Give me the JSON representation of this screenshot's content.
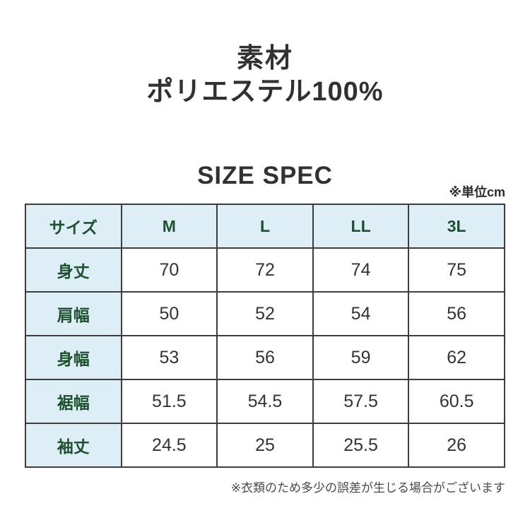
{
  "colors": {
    "background": "#ffffff",
    "header_cell_bg": "#ddeef6",
    "header_cell_text": "#1e5130",
    "table_border": "#3d3d3d",
    "title_text": "#313131",
    "cell_text": "#333333",
    "footnote_text": "#4a4a4a"
  },
  "material": {
    "title": "素材",
    "value": "ポリエステル100%"
  },
  "size_spec": {
    "heading": "SIZE SPEC",
    "unit_note": "※単位cm",
    "table": {
      "columns": [
        "サイズ",
        "M",
        "L",
        "LL",
        "3L"
      ],
      "rows": [
        {
          "label": "身丈",
          "values": [
            "70",
            "72",
            "74",
            "75"
          ]
        },
        {
          "label": "肩幅",
          "values": [
            "50",
            "52",
            "54",
            "56"
          ]
        },
        {
          "label": "身幅",
          "values": [
            "53",
            "56",
            "59",
            "62"
          ]
        },
        {
          "label": "裾幅",
          "values": [
            "51.5",
            "54.5",
            "57.5",
            "60.5"
          ]
        },
        {
          "label": "袖丈",
          "values": [
            "24.5",
            "25",
            "25.5",
            "26"
          ]
        }
      ]
    },
    "footnote": "※衣類のため多少の誤差が生じる場合がございます"
  }
}
